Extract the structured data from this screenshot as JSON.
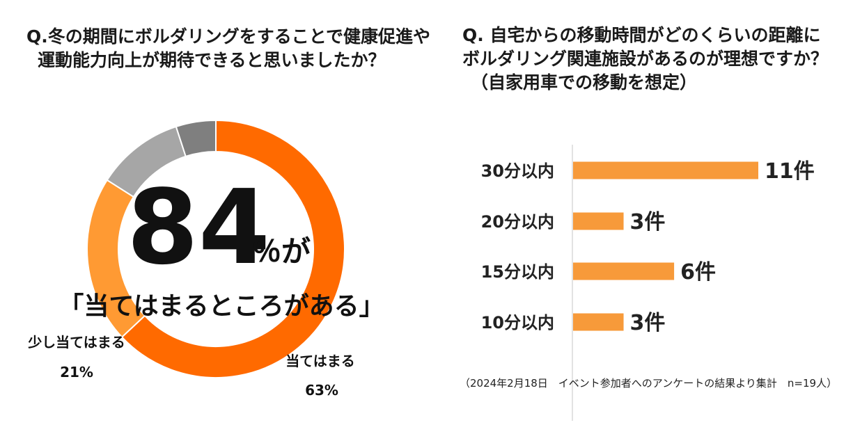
{
  "left": {
    "question_line1": "Q.冬の期間にボルダリングをすることで健康促進や",
    "question_line2": "運動能力向上が期待できると思いましたか？",
    "headline_number": "84",
    "headline_suffix": "％が",
    "headline_quote": "「当てはまるところがある」"
  },
  "right": {
    "question_line1": "Q. 自宅からの移動時間がどのくらいの距離に",
    "question_line2": "ボルダリング関連施設があるのが理想ですか？",
    "question_line3": "（自家用車での移動を想定）",
    "footnote": "（2024年2月18日　イベント参加者へのアンケートの結果より集計　n=19人）"
  },
  "colors": {
    "dark_orange": "#ff6a00",
    "light_orange": "#ff9a33",
    "light_gray": "#a6a6a6",
    "dark_gray": "#7f7f7f",
    "bar_orange": "#f79a3a"
  },
  "chart_data": [
    {
      "type": "pie",
      "variant": "donut",
      "slices": [
        {
          "label": "当てはまる",
          "value": 63,
          "value_label": "63%",
          "color": "#ff6a00"
        },
        {
          "label": "少し当てはまる",
          "value": 21,
          "value_label": "21%",
          "color": "#ff9a33"
        },
        {
          "label": "",
          "value": 11,
          "color": "#a6a6a6"
        },
        {
          "label": "",
          "value": 5,
          "color": "#7f7f7f"
        }
      ]
    },
    {
      "type": "bar",
      "orientation": "horizontal",
      "categories": [
        "30分以内",
        "20分以内",
        "15分以内",
        "10分以内"
      ],
      "values": [
        11,
        3,
        6,
        3
      ],
      "value_labels": [
        "11件",
        "3件",
        "6件",
        "3件"
      ],
      "xlim": [
        0,
        11
      ]
    }
  ]
}
